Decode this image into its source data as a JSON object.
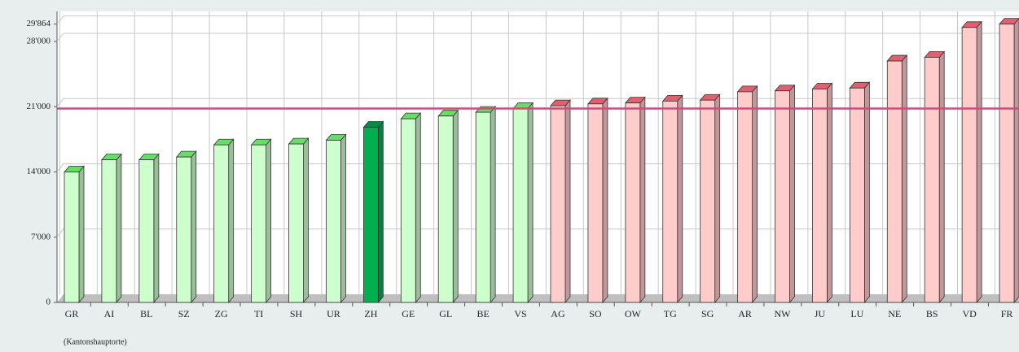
{
  "chart_data": {
    "type": "bar3d",
    "categories": [
      "GR",
      "AI",
      "BL",
      "SZ",
      "ZG",
      "TI",
      "SH",
      "UR",
      "ZH",
      "GE",
      "GL",
      "BE",
      "VS",
      "AG",
      "SO",
      "OW",
      "TG",
      "SG",
      "AR",
      "NW",
      "JU",
      "LU",
      "NE",
      "BS",
      "VD",
      "FR"
    ],
    "values": [
      14000,
      15300,
      15300,
      15600,
      16900,
      16900,
      17000,
      17400,
      18800,
      19700,
      20000,
      20400,
      20800,
      21100,
      21300,
      21400,
      21600,
      21700,
      22600,
      22700,
      22900,
      23000,
      25900,
      26300,
      29500,
      29864
    ],
    "colors": [
      "#ccffcc",
      "#ccffcc",
      "#ccffcc",
      "#ccffcc",
      "#ccffcc",
      "#ccffcc",
      "#ccffcc",
      "#ccffcc",
      "#00b050",
      "#ccffcc",
      "#ccffcc",
      "#ccffcc",
      "#ccffcc",
      "#ffcccc",
      "#ffcccc",
      "#ffcccc",
      "#ffcccc",
      "#ffcccc",
      "#ffcccc",
      "#ffcccc",
      "#ffcccc",
      "#ffcccc",
      "#ffcccc",
      "#ffcccc",
      "#ffcccc",
      "#ffcccc"
    ],
    "ylim": [
      0,
      31000
    ],
    "yticks": [
      0,
      {
        "value": 7000,
        "label": "7'000"
      },
      {
        "value": 14000,
        "label": "14'000"
      },
      {
        "value": 21000,
        "label": "21'000"
      },
      {
        "value": 28000,
        "label": "28'000"
      },
      {
        "value": 29864,
        "label": "29'864"
      }
    ],
    "grid": true,
    "reference_line": {
      "value": 20800,
      "color": "#c8507a"
    },
    "footnote": "(Kantonshauptorte)"
  }
}
